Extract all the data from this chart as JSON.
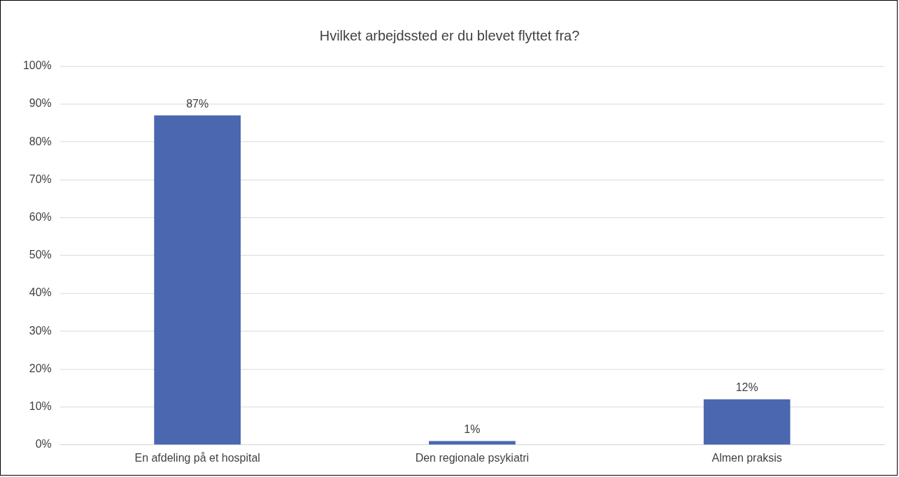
{
  "chart_data": {
    "type": "bar",
    "title": "Hvilket arbejdssted er du blevet flyttet fra?",
    "categories": [
      "En afdeling på et hospital",
      "Den regionale psykiatri",
      "Almen praksis"
    ],
    "values": [
      87,
      1,
      12
    ],
    "color": "#4a67b0",
    "value_labels": [
      "87%",
      "1%",
      "12%"
    ],
    "ylim": [
      0,
      100
    ],
    "yticks": [
      {
        "value": 0,
        "label": "0%"
      },
      {
        "value": 10,
        "label": "10%"
      },
      {
        "value": 20,
        "label": "20%"
      },
      {
        "value": 30,
        "label": "30%"
      },
      {
        "value": 40,
        "label": "40%"
      },
      {
        "value": 50,
        "label": "50%"
      },
      {
        "value": 60,
        "label": "60%"
      },
      {
        "value": 70,
        "label": "70%"
      },
      {
        "value": 80,
        "label": "80%"
      },
      {
        "value": 90,
        "label": "90%"
      },
      {
        "value": 100,
        "label": "100%"
      }
    ],
    "grid": "y",
    "legend": false
  }
}
